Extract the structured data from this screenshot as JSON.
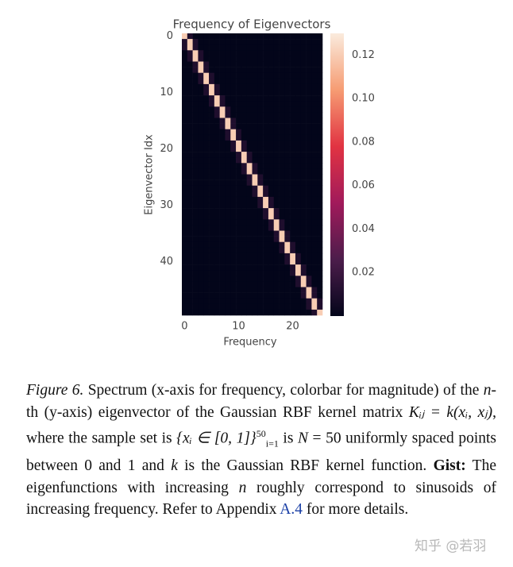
{
  "chart_data": {
    "type": "heatmap",
    "title": "Frequency of Eigenvectors",
    "xlabel": "Frequency",
    "ylabel": "Eigenvector Idx",
    "xticks": [
      0,
      10,
      20
    ],
    "yticks": [
      0,
      10,
      20,
      30,
      40
    ],
    "colormap": "rocket",
    "colorbar": {
      "lim": [
        0,
        0.13
      ],
      "ticks": [
        0.02,
        0.04,
        0.06,
        0.08,
        {
          "value": 0.1,
          "label": "0.10"
        },
        0.12
      ]
    },
    "values": [
      [
        0.12,
        0.01,
        0,
        0,
        0,
        0,
        0,
        0,
        0,
        0,
        0,
        0,
        0,
        0,
        0,
        0,
        0,
        0,
        0,
        0,
        0,
        0,
        0,
        0,
        0,
        0
      ],
      [
        0.01,
        0.12,
        0.01,
        0,
        0,
        0,
        0,
        0,
        0,
        0,
        0,
        0,
        0,
        0,
        0,
        0,
        0,
        0,
        0,
        0,
        0,
        0,
        0,
        0,
        0,
        0
      ],
      [
        0.01,
        0.12,
        0.01,
        0,
        0,
        0,
        0,
        0,
        0,
        0,
        0,
        0,
        0,
        0,
        0,
        0,
        0,
        0,
        0,
        0,
        0,
        0,
        0,
        0,
        0,
        0
      ],
      [
        0,
        0.01,
        0.12,
        0.01,
        0,
        0,
        0,
        0,
        0,
        0,
        0,
        0,
        0,
        0,
        0,
        0,
        0,
        0,
        0,
        0,
        0,
        0,
        0,
        0,
        0,
        0
      ],
      [
        0,
        0.01,
        0.12,
        0.01,
        0,
        0,
        0,
        0,
        0,
        0,
        0,
        0,
        0,
        0,
        0,
        0,
        0,
        0,
        0,
        0,
        0,
        0,
        0,
        0,
        0,
        0
      ],
      [
        0,
        0,
        0.01,
        0.12,
        0.01,
        0,
        0,
        0,
        0,
        0,
        0,
        0,
        0,
        0,
        0,
        0,
        0,
        0,
        0,
        0,
        0,
        0,
        0,
        0,
        0,
        0
      ],
      [
        0,
        0,
        0.01,
        0.12,
        0.01,
        0,
        0,
        0,
        0,
        0,
        0,
        0,
        0,
        0,
        0,
        0,
        0,
        0,
        0,
        0,
        0,
        0,
        0,
        0,
        0,
        0
      ],
      [
        0,
        0,
        0,
        0.01,
        0.12,
        0.01,
        0,
        0,
        0,
        0,
        0,
        0,
        0,
        0,
        0,
        0,
        0,
        0,
        0,
        0,
        0,
        0,
        0,
        0,
        0,
        0
      ],
      [
        0,
        0,
        0,
        0.01,
        0.12,
        0.01,
        0,
        0,
        0,
        0,
        0,
        0,
        0,
        0,
        0,
        0,
        0,
        0,
        0,
        0,
        0,
        0,
        0,
        0,
        0,
        0
      ],
      [
        0,
        0,
        0,
        0,
        0.01,
        0.12,
        0.01,
        0,
        0,
        0,
        0,
        0,
        0,
        0,
        0,
        0,
        0,
        0,
        0,
        0,
        0,
        0,
        0,
        0,
        0,
        0
      ],
      [
        0,
        0,
        0,
        0,
        0.01,
        0.12,
        0.01,
        0,
        0,
        0,
        0,
        0,
        0,
        0,
        0,
        0,
        0,
        0,
        0,
        0,
        0,
        0,
        0,
        0,
        0,
        0
      ],
      [
        0,
        0,
        0,
        0,
        0,
        0.01,
        0.12,
        0.01,
        0,
        0,
        0,
        0,
        0,
        0,
        0,
        0,
        0,
        0,
        0,
        0,
        0,
        0,
        0,
        0,
        0,
        0
      ],
      [
        0,
        0,
        0,
        0,
        0,
        0.01,
        0.12,
        0.01,
        0,
        0,
        0,
        0,
        0,
        0,
        0,
        0,
        0,
        0,
        0,
        0,
        0,
        0,
        0,
        0,
        0,
        0
      ],
      [
        0,
        0,
        0,
        0,
        0,
        0,
        0.01,
        0.12,
        0.01,
        0,
        0,
        0,
        0,
        0,
        0,
        0,
        0,
        0,
        0,
        0,
        0,
        0,
        0,
        0,
        0,
        0
      ],
      [
        0,
        0,
        0,
        0,
        0,
        0,
        0.01,
        0.12,
        0.01,
        0,
        0,
        0,
        0,
        0,
        0,
        0,
        0,
        0,
        0,
        0,
        0,
        0,
        0,
        0,
        0,
        0
      ],
      [
        0,
        0,
        0,
        0,
        0,
        0,
        0,
        0.01,
        0.12,
        0.01,
        0,
        0,
        0,
        0,
        0,
        0,
        0,
        0,
        0,
        0,
        0,
        0,
        0,
        0,
        0,
        0
      ],
      [
        0,
        0,
        0,
        0,
        0,
        0,
        0,
        0.01,
        0.12,
        0.01,
        0,
        0,
        0,
        0,
        0,
        0,
        0,
        0,
        0,
        0,
        0,
        0,
        0,
        0,
        0,
        0
      ],
      [
        0,
        0,
        0,
        0,
        0,
        0,
        0,
        0,
        0.01,
        0.12,
        0.01,
        0,
        0,
        0,
        0,
        0,
        0,
        0,
        0,
        0,
        0,
        0,
        0,
        0,
        0,
        0
      ],
      [
        0,
        0,
        0,
        0,
        0,
        0,
        0,
        0,
        0.01,
        0.12,
        0.01,
        0,
        0,
        0,
        0,
        0,
        0,
        0,
        0,
        0,
        0,
        0,
        0,
        0,
        0,
        0
      ],
      [
        0,
        0,
        0,
        0,
        0,
        0,
        0,
        0,
        0,
        0.01,
        0.12,
        0.01,
        0,
        0,
        0,
        0,
        0,
        0,
        0,
        0,
        0,
        0,
        0,
        0,
        0,
        0
      ],
      [
        0,
        0,
        0,
        0,
        0,
        0,
        0,
        0,
        0,
        0.01,
        0.12,
        0.01,
        0,
        0,
        0,
        0,
        0,
        0,
        0,
        0,
        0,
        0,
        0,
        0,
        0,
        0
      ],
      [
        0,
        0,
        0,
        0,
        0,
        0,
        0,
        0,
        0,
        0,
        0.01,
        0.12,
        0.01,
        0,
        0,
        0,
        0,
        0,
        0,
        0,
        0,
        0,
        0,
        0,
        0,
        0
      ],
      [
        0,
        0,
        0,
        0,
        0,
        0,
        0,
        0,
        0,
        0,
        0.01,
        0.12,
        0.01,
        0,
        0,
        0,
        0,
        0,
        0,
        0,
        0,
        0,
        0,
        0,
        0,
        0
      ],
      [
        0,
        0,
        0,
        0,
        0,
        0,
        0,
        0,
        0,
        0,
        0,
        0.01,
        0.12,
        0.01,
        0,
        0,
        0,
        0,
        0,
        0,
        0,
        0,
        0,
        0,
        0,
        0
      ],
      [
        0,
        0,
        0,
        0,
        0,
        0,
        0,
        0,
        0,
        0,
        0,
        0.01,
        0.12,
        0.01,
        0,
        0,
        0,
        0,
        0,
        0,
        0,
        0,
        0,
        0,
        0,
        0
      ],
      [
        0,
        0,
        0,
        0,
        0,
        0,
        0,
        0,
        0,
        0,
        0,
        0,
        0.01,
        0.12,
        0.01,
        0,
        0,
        0,
        0,
        0,
        0,
        0,
        0,
        0,
        0,
        0
      ],
      [
        0,
        0,
        0,
        0,
        0,
        0,
        0,
        0,
        0,
        0,
        0,
        0,
        0.01,
        0.12,
        0.01,
        0,
        0,
        0,
        0,
        0,
        0,
        0,
        0,
        0,
        0,
        0
      ],
      [
        0,
        0,
        0,
        0,
        0,
        0,
        0,
        0,
        0,
        0,
        0,
        0,
        0,
        0.01,
        0.12,
        0.01,
        0,
        0,
        0,
        0,
        0,
        0,
        0,
        0,
        0,
        0
      ],
      [
        0,
        0,
        0,
        0,
        0,
        0,
        0,
        0,
        0,
        0,
        0,
        0,
        0,
        0.01,
        0.12,
        0.01,
        0,
        0,
        0,
        0,
        0,
        0,
        0,
        0,
        0,
        0
      ],
      [
        0,
        0,
        0,
        0,
        0,
        0,
        0,
        0,
        0,
        0,
        0,
        0,
        0,
        0,
        0.01,
        0.12,
        0.01,
        0,
        0,
        0,
        0,
        0,
        0,
        0,
        0,
        0
      ],
      [
        0,
        0,
        0,
        0,
        0,
        0,
        0,
        0,
        0,
        0,
        0,
        0,
        0,
        0,
        0.01,
        0.12,
        0.01,
        0,
        0,
        0,
        0,
        0,
        0,
        0,
        0,
        0
      ],
      [
        0,
        0,
        0,
        0,
        0,
        0,
        0,
        0,
        0,
        0,
        0,
        0,
        0,
        0,
        0,
        0.01,
        0.12,
        0.01,
        0,
        0,
        0,
        0,
        0,
        0,
        0,
        0
      ],
      [
        0,
        0,
        0,
        0,
        0,
        0,
        0,
        0,
        0,
        0,
        0,
        0,
        0,
        0,
        0,
        0.01,
        0.12,
        0.01,
        0,
        0,
        0,
        0,
        0,
        0,
        0,
        0
      ],
      [
        0,
        0,
        0,
        0,
        0,
        0,
        0,
        0,
        0,
        0,
        0,
        0,
        0,
        0,
        0,
        0,
        0.01,
        0.12,
        0.01,
        0,
        0,
        0,
        0,
        0,
        0,
        0
      ],
      [
        0,
        0,
        0,
        0,
        0,
        0,
        0,
        0,
        0,
        0,
        0,
        0,
        0,
        0,
        0,
        0,
        0.01,
        0.12,
        0.01,
        0,
        0,
        0,
        0,
        0,
        0,
        0
      ],
      [
        0,
        0,
        0,
        0,
        0,
        0,
        0,
        0,
        0,
        0,
        0,
        0,
        0,
        0,
        0,
        0,
        0,
        0.01,
        0.12,
        0.01,
        0,
        0,
        0,
        0,
        0,
        0
      ],
      [
        0,
        0,
        0,
        0,
        0,
        0,
        0,
        0,
        0,
        0,
        0,
        0,
        0,
        0,
        0,
        0,
        0,
        0.01,
        0.12,
        0.01,
        0,
        0,
        0,
        0,
        0,
        0
      ],
      [
        0,
        0,
        0,
        0,
        0,
        0,
        0,
        0,
        0,
        0,
        0,
        0,
        0,
        0,
        0,
        0,
        0,
        0,
        0.01,
        0.12,
        0.01,
        0,
        0,
        0,
        0,
        0
      ],
      [
        0,
        0,
        0,
        0,
        0,
        0,
        0,
        0,
        0,
        0,
        0,
        0,
        0,
        0,
        0,
        0,
        0,
        0,
        0.01,
        0.12,
        0.01,
        0,
        0,
        0,
        0,
        0
      ],
      [
        0,
        0,
        0,
        0,
        0,
        0,
        0,
        0,
        0,
        0,
        0,
        0,
        0,
        0,
        0,
        0,
        0,
        0,
        0,
        0.01,
        0.12,
        0.01,
        0,
        0,
        0,
        0
      ],
      [
        0,
        0,
        0,
        0,
        0,
        0,
        0,
        0,
        0,
        0,
        0,
        0,
        0,
        0,
        0,
        0,
        0,
        0,
        0,
        0.01,
        0.12,
        0.01,
        0,
        0,
        0,
        0
      ],
      [
        0,
        0,
        0,
        0,
        0,
        0,
        0,
        0,
        0,
        0,
        0,
        0,
        0,
        0,
        0,
        0,
        0,
        0,
        0,
        0,
        0.01,
        0.12,
        0.01,
        0,
        0,
        0
      ],
      [
        0,
        0,
        0,
        0,
        0,
        0,
        0,
        0,
        0,
        0,
        0,
        0,
        0,
        0,
        0,
        0,
        0,
        0,
        0,
        0,
        0.01,
        0.12,
        0.01,
        0,
        0,
        0
      ],
      [
        0,
        0,
        0,
        0,
        0,
        0,
        0,
        0,
        0,
        0,
        0,
        0,
        0,
        0,
        0,
        0,
        0,
        0,
        0,
        0,
        0,
        0.01,
        0.12,
        0.01,
        0,
        0
      ],
      [
        0,
        0,
        0,
        0,
        0,
        0,
        0,
        0,
        0,
        0,
        0,
        0,
        0,
        0,
        0,
        0,
        0,
        0,
        0,
        0,
        0,
        0.01,
        0.12,
        0.01,
        0,
        0
      ],
      [
        0,
        0,
        0,
        0,
        0,
        0,
        0,
        0,
        0,
        0,
        0,
        0,
        0,
        0,
        0,
        0,
        0,
        0,
        0,
        0,
        0,
        0,
        0.01,
        0.12,
        0.01,
        0
      ],
      [
        0,
        0,
        0,
        0,
        0,
        0,
        0,
        0,
        0,
        0,
        0,
        0,
        0,
        0,
        0,
        0,
        0,
        0,
        0,
        0,
        0,
        0,
        0.01,
        0.12,
        0.01,
        0
      ],
      [
        0,
        0,
        0,
        0,
        0,
        0,
        0,
        0,
        0,
        0,
        0,
        0,
        0,
        0,
        0,
        0,
        0,
        0,
        0,
        0,
        0,
        0,
        0,
        0.01,
        0.12,
        0.01
      ],
      [
        0,
        0,
        0,
        0,
        0,
        0,
        0,
        0,
        0,
        0,
        0,
        0,
        0,
        0,
        0,
        0,
        0,
        0,
        0,
        0,
        0,
        0,
        0,
        0.01,
        0.12,
        0.01
      ],
      [
        0,
        0,
        0,
        0,
        0,
        0,
        0,
        0,
        0,
        0,
        0,
        0,
        0,
        0,
        0,
        0,
        0,
        0,
        0,
        0,
        0,
        0,
        0,
        0,
        0.01,
        0.12
      ]
    ]
  },
  "caption": {
    "parts": [
      "Figure 6.",
      " Spectrum (x-axis for frequency, colorbar for magnitude) of the ",
      "n",
      "-th (y-axis) eigenvector of the Gaussian RBF kernel matrix ",
      "Kᵢⱼ = k(xᵢ, xⱼ)",
      ", where the sample set is ",
      "{xᵢ ∈ [0, 1]}",
      "50",
      "i=1",
      " is ",
      "N",
      " = 50 uniformly spaced points between 0 and 1 and ",
      "k",
      " is the Gaussian RBF kernel function. ",
      "Gist:",
      " The eigenfunctions with increasing ",
      "n",
      " roughly correspond to sinusoids of increasing frequency. Refer to Appendix ",
      "A.4",
      " for more details."
    ]
  },
  "watermark": "知乎 @若羽"
}
